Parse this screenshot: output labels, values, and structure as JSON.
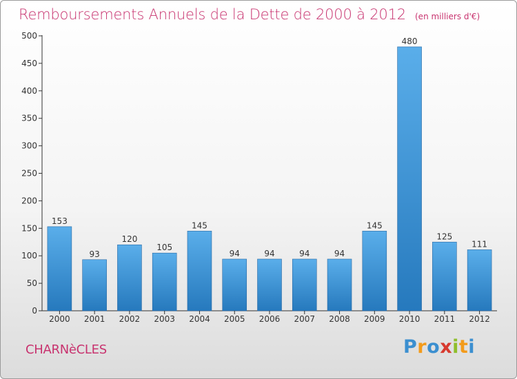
{
  "chart_data": {
    "type": "bar",
    "title": "Remboursements Annuels de la Dette de 2000 à 2012",
    "unit_note": "(en milliers d'€)",
    "categories": [
      "2000",
      "2001",
      "2002",
      "2003",
      "2004",
      "2005",
      "2006",
      "2007",
      "2008",
      "2009",
      "2010",
      "2011",
      "2012"
    ],
    "values": [
      153,
      93,
      120,
      105,
      145,
      94,
      94,
      94,
      94,
      145,
      480,
      125,
      111
    ],
    "ylim": [
      0,
      500
    ],
    "yticks": [
      "0",
      "50",
      "100",
      "150",
      "200",
      "250",
      "300",
      "350",
      "400",
      "450",
      "500"
    ],
    "grid": false,
    "bar_color": "#3f95d8"
  },
  "footer": {
    "town": "CHARNèCLES",
    "logo_letters": [
      "P",
      "r",
      "o",
      "x",
      "i",
      "t",
      "i"
    ],
    "logo_colors": [
      "#3b8fd0",
      "#f39b1b",
      "#3b8fd0",
      "#d73a2f",
      "#8fbe2b",
      "#f39b1b",
      "#3b8fd0"
    ]
  }
}
